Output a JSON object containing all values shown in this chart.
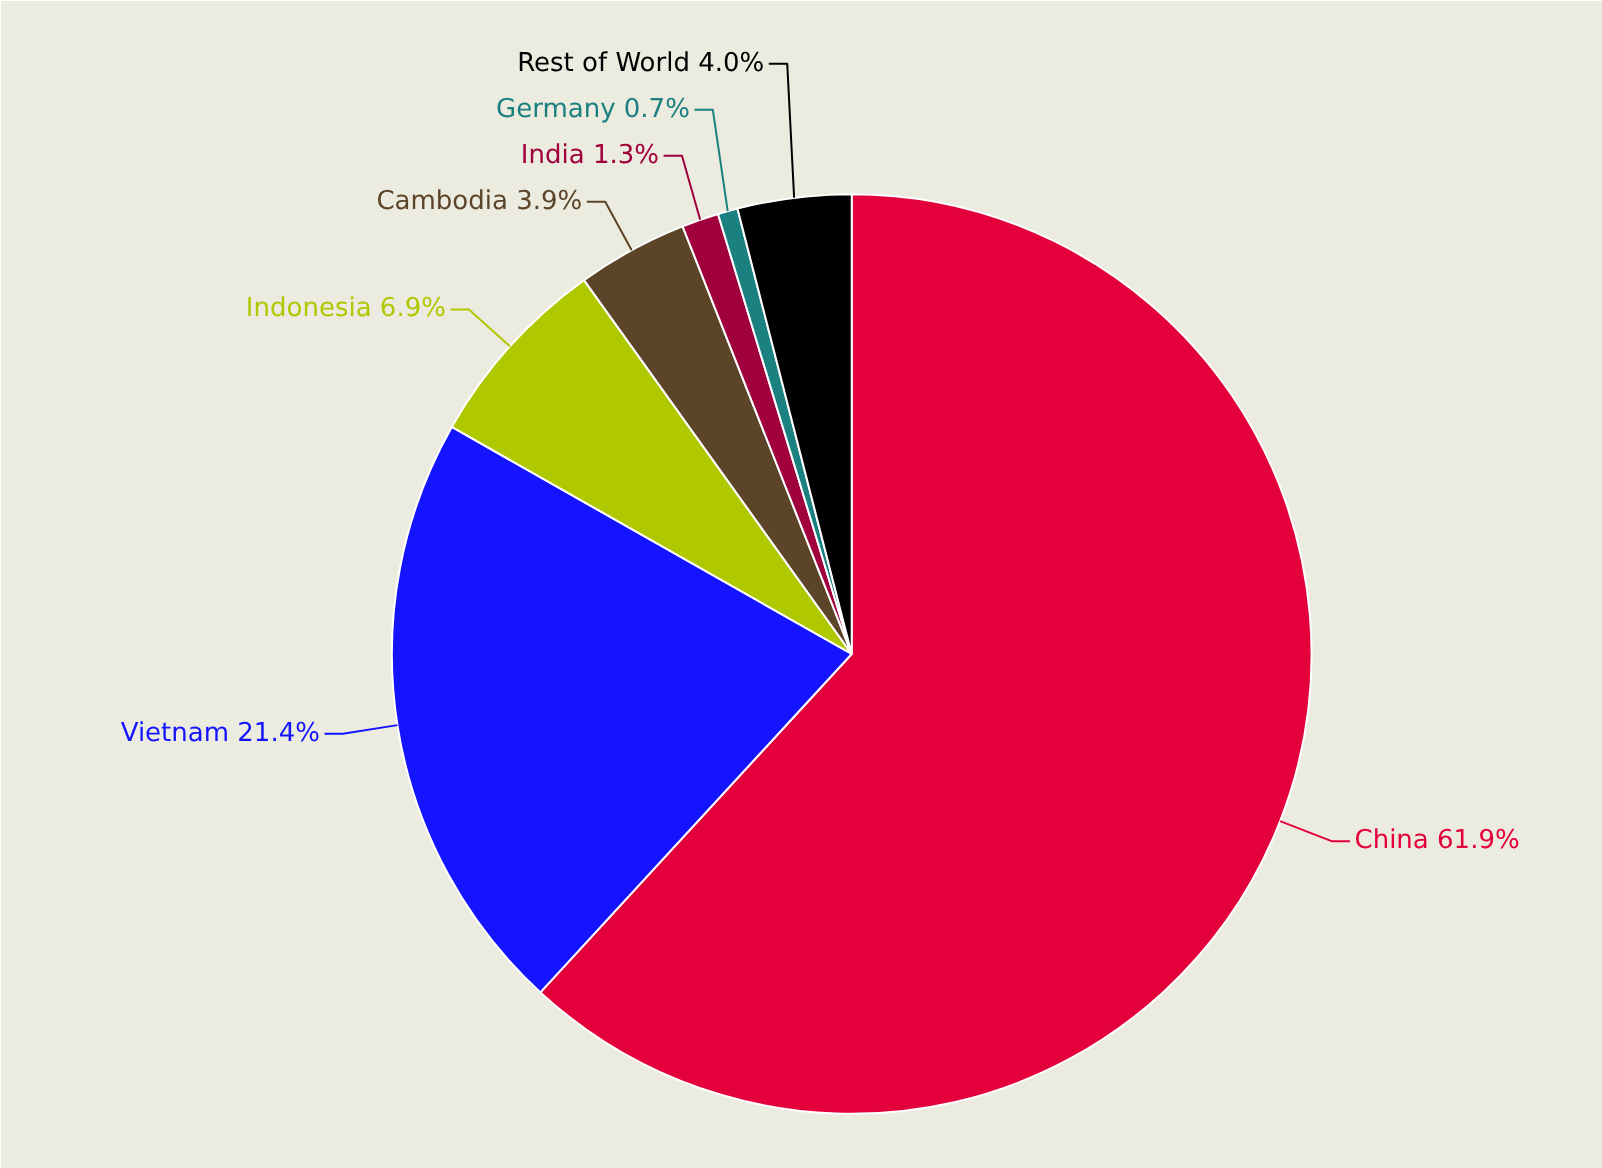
{
  "chart_data": {
    "type": "pie",
    "categories": [
      "China",
      "Vietnam",
      "Indonesia",
      "Cambodia",
      "India",
      "Germany",
      "Rest of World"
    ],
    "values": [
      61.9,
      21.4,
      6.9,
      3.9,
      1.3,
      0.7,
      4.0
    ],
    "colors": [
      "#e4003b",
      "#1414ff",
      "#b0c800",
      "#5c4428",
      "#a0003c",
      "#1a8080",
      "#000000"
    ],
    "value_labels": [
      "61.9%",
      "21.4%",
      "6.9%",
      "3.9%",
      "1.3%",
      "0.7%",
      "4.0%"
    ]
  }
}
